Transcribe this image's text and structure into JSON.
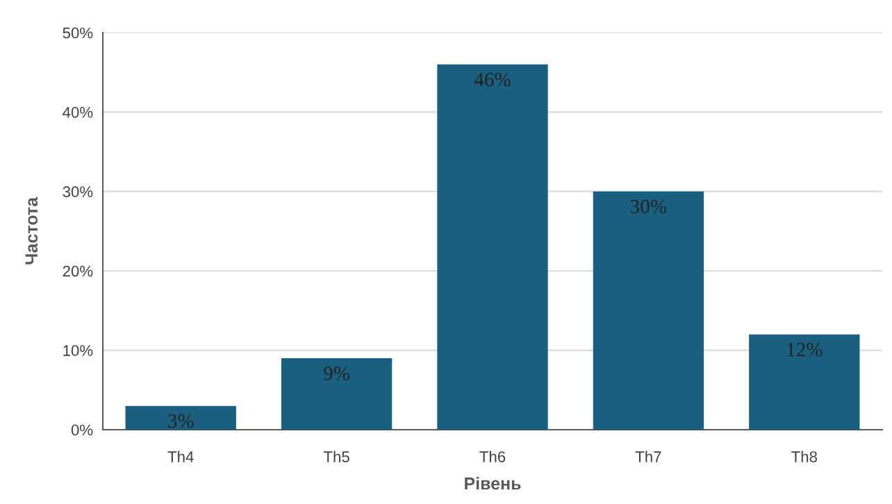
{
  "chart_data": {
    "type": "bar",
    "xlabel": "Рівень",
    "ylabel": "Частота",
    "categories": [
      "Th4",
      "Th5",
      "Th6",
      "Th7",
      "Th8"
    ],
    "values": [
      3,
      9,
      46,
      30,
      12
    ],
    "color": "#1a5f80",
    "value_labels": [
      "3%",
      "9%",
      "46%",
      "30%",
      "12%"
    ],
    "ylim": [
      0,
      50
    ],
    "yticks": [
      {
        "value": 0,
        "label": "0%"
      },
      {
        "value": 10,
        "label": "10%"
      },
      {
        "value": 20,
        "label": "20%"
      },
      {
        "value": 30,
        "label": "30%"
      },
      {
        "value": 40,
        "label": "40%"
      },
      {
        "value": 50,
        "label": "50%"
      }
    ],
    "grid": "y"
  }
}
